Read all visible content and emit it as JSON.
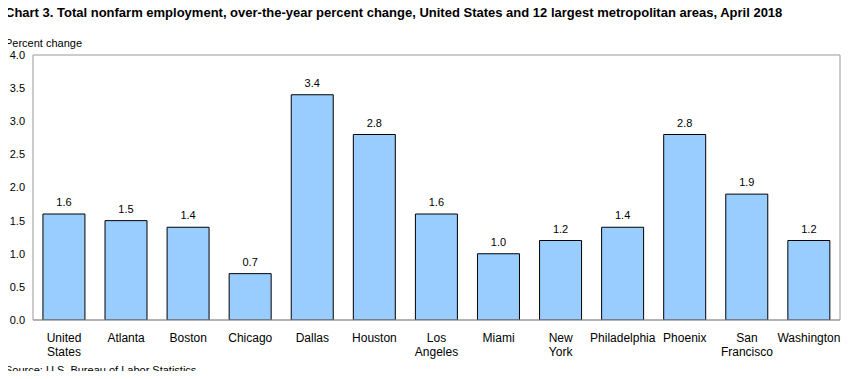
{
  "chart_data": {
    "type": "bar",
    "title": "Chart 3. Total nonfarm employment, over-the-year percent change, United States and 12 largest metropolitan areas, April 2018",
    "y_label": "Percent change",
    "source": "Source: U.S. Bureau of Labor Statistics.",
    "categories": [
      "United States",
      "Atlanta",
      "Boston",
      "Chicago",
      "Dallas",
      "Houston",
      "Los Angeles",
      "Miami",
      "New York",
      "Philadelphia",
      "Phoenix",
      "San Francisco",
      "Washington"
    ],
    "values": [
      1.6,
      1.5,
      1.4,
      0.7,
      3.4,
      2.8,
      1.6,
      1.0,
      1.2,
      1.4,
      2.8,
      1.9,
      1.2
    ],
    "value_labels": [
      "1.6",
      "1.5",
      "1.4",
      "0.7",
      "3.4",
      "2.8",
      "1.6",
      "1.0",
      "1.2",
      "1.4",
      "2.8",
      "1.9",
      "1.2"
    ],
    "color": "#99ccff",
    "ylim": [
      0,
      4
    ],
    "yticks": [
      {
        "value": 0,
        "label": "0.0"
      },
      {
        "value": 0.5,
        "label": "0.5"
      },
      {
        "value": 1,
        "label": "1.0"
      },
      {
        "value": 1.5,
        "label": "1.5"
      },
      {
        "value": 2,
        "label": "2.0"
      },
      {
        "value": 2.5,
        "label": "2.5"
      },
      {
        "value": 3,
        "label": "3.0"
      },
      {
        "value": 3.5,
        "label": "3.5"
      },
      {
        "value": 4,
        "label": "4.0"
      }
    ],
    "grid": true,
    "data_labels": true
  }
}
